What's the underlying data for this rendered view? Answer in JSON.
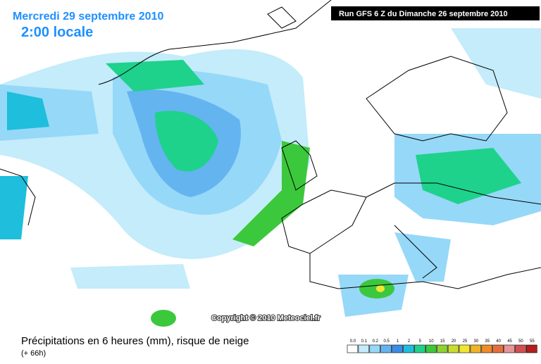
{
  "header": {
    "date": "Mercredi 29 septembre 2010",
    "time": "2:00 locale",
    "run": "Run GFS 6 Z du Dimanche 26 septembre 2010"
  },
  "copyright": "Copyright © 2010 Meteociel.fr",
  "footer": {
    "title": "Précipitations en 6 heures (mm), risque de neige",
    "lead": "(+ 66h)"
  },
  "legend": {
    "items": [
      {
        "label": "0.0",
        "color": "#ffffff"
      },
      {
        "label": "0.1",
        "color": "#c4ecfa"
      },
      {
        "label": "0.2",
        "color": "#96d8f8"
      },
      {
        "label": "0.5",
        "color": "#64b4f0"
      },
      {
        "label": "1",
        "color": "#3c8ce6"
      },
      {
        "label": "2",
        "color": "#1ebedc"
      },
      {
        "label": "5",
        "color": "#1ed28c"
      },
      {
        "label": "10",
        "color": "#3cc83c"
      },
      {
        "label": "15",
        "color": "#8cd232"
      },
      {
        "label": "20",
        "color": "#c8dc32"
      },
      {
        "label": "25",
        "color": "#f0e632"
      },
      {
        "label": "30",
        "color": "#f0b428"
      },
      {
        "label": "35",
        "color": "#f08c28"
      },
      {
        "label": "40",
        "color": "#e66e3c"
      },
      {
        "label": "45",
        "color": "#e69696"
      },
      {
        "label": "50",
        "color": "#d25050"
      },
      {
        "label": "55",
        "color": "#b41e1e"
      }
    ]
  }
}
